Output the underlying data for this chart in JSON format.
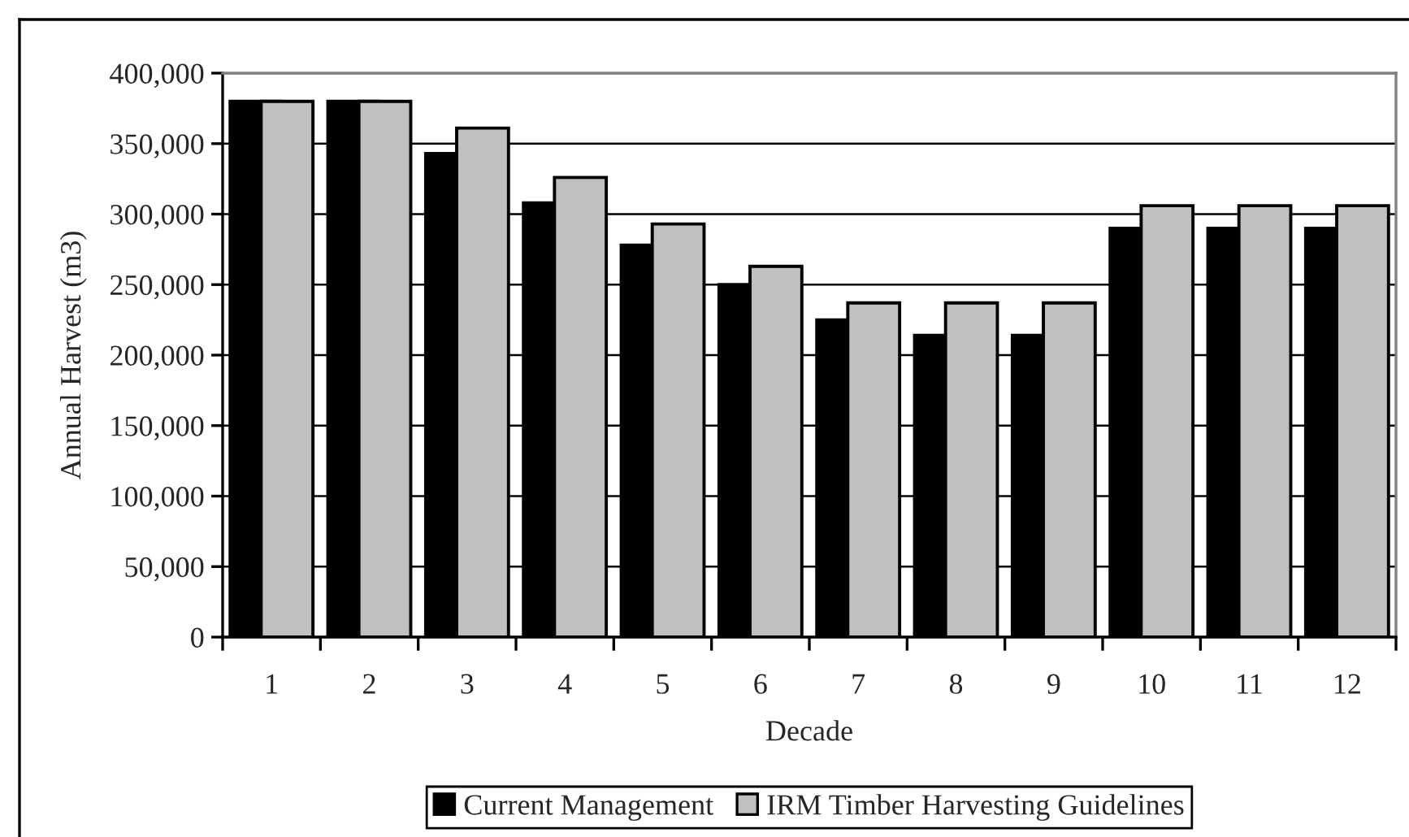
{
  "chart_data": {
    "type": "bar",
    "xlabel": "Decade",
    "ylabel": "Annual Harvest (m3)",
    "categories": [
      "1",
      "2",
      "3",
      "4",
      "5",
      "6",
      "7",
      "8",
      "9",
      "10",
      "11",
      "12"
    ],
    "series": [
      {
        "name": "Current Management",
        "color": "#000000",
        "values": [
          380000,
          380000,
          343000,
          308000,
          278000,
          250000,
          225000,
          214000,
          214000,
          290000,
          290000,
          290000
        ]
      },
      {
        "name": "IRM Timber Harvesting Guidelines",
        "color": "#c0c0c0",
        "values": [
          380000,
          380000,
          361000,
          326000,
          293000,
          263000,
          237000,
          237000,
          237000,
          306000,
          306000,
          306000
        ]
      }
    ],
    "ylim": [
      0,
      400000
    ],
    "yticks": [
      0,
      {
        "value": 50000,
        "label": "50,000"
      },
      {
        "value": 100000,
        "label": "100,000"
      },
      {
        "value": 150000,
        "label": "150,000"
      },
      {
        "value": 200000,
        "label": "200,000"
      },
      {
        "value": 250000,
        "label": "250,000"
      },
      {
        "value": 300000,
        "label": "300,000"
      },
      {
        "value": 350000,
        "label": "350,000"
      },
      {
        "value": 400000,
        "label": "400,000"
      }
    ],
    "grid": "y",
    "legend": "bottom"
  }
}
